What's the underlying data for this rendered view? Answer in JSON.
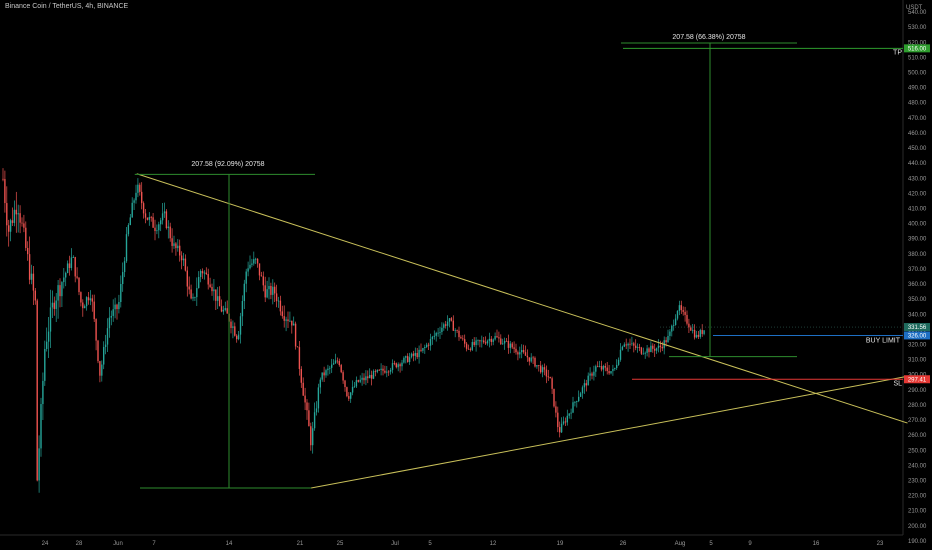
{
  "header": {
    "title": "Binance Coin / TetherUS, 4h, BINANCE"
  },
  "colors": {
    "bull": "#26a69a",
    "bear": "#ef5350",
    "trend": "#c9c05a",
    "measure": "#2e8b2e",
    "buy": "#1e6fc4",
    "tp": "#2e9d2e",
    "sl": "#e53935"
  },
  "chart_data": {
    "type": "candlestick",
    "symbol": "Binance Coin / TetherUS",
    "interval": "4h",
    "exchange": "BINANCE",
    "y_unit": "USDT",
    "ylim": [
      184,
      548
    ],
    "y_ticks": [
      190,
      200,
      210,
      220,
      230,
      240,
      250,
      260,
      270,
      280,
      290,
      300,
      310,
      320,
      330,
      340,
      350,
      360,
      370,
      380,
      390,
      400,
      410,
      420,
      430,
      440,
      450,
      460,
      470,
      480,
      490,
      500,
      510,
      520,
      530,
      540
    ],
    "x_ticks": [
      "24",
      "28",
      "Jun",
      "7",
      "14",
      "21",
      "25",
      "Jul",
      "5",
      "12",
      "19",
      "26",
      "Aug",
      "5",
      "9",
      "16",
      "23"
    ],
    "price_path": [
      [
        "May 19",
        455
      ],
      [
        "May 20",
        395
      ],
      [
        "May 21",
        415
      ],
      [
        "May 22",
        380
      ],
      [
        "May 23",
        345
      ],
      [
        "May 23",
        215
      ],
      [
        "May 24",
        320
      ],
      [
        "May 25",
        350
      ],
      [
        "May 27",
        378
      ],
      [
        "May 28",
        345
      ],
      [
        "May 29",
        355
      ],
      [
        "May 30",
        300
      ],
      [
        "May 31",
        338
      ],
      [
        "Jun 1",
        345
      ],
      [
        "Jun 2",
        395
      ],
      [
        "Jun 3",
        425
      ],
      [
        "Jun 4",
        405
      ],
      [
        "Jun 5",
        398
      ],
      [
        "Jun 6",
        405
      ],
      [
        "Jun 7",
        385
      ],
      [
        "Jun 8",
        378
      ],
      [
        "Jun 9",
        345
      ],
      [
        "Jun 10",
        370
      ],
      [
        "Jun 11",
        362
      ],
      [
        "Jun 12",
        345
      ],
      [
        "Jun 13",
        338
      ],
      [
        "Jun 14",
        325
      ],
      [
        "Jun 15",
        372
      ],
      [
        "Jun 16",
        375
      ],
      [
        "Jun 17",
        355
      ],
      [
        "Jun 18",
        355
      ],
      [
        "Jun 19",
        340
      ],
      [
        "Jun 20",
        335
      ],
      [
        "Jun 21",
        295
      ],
      [
        "Jun 22",
        255
      ],
      [
        "Jun 23",
        298
      ],
      [
        "Jun 25",
        310
      ],
      [
        "Jun 26",
        285
      ],
      [
        "Jun 27",
        295
      ],
      [
        "Jul 1",
        306
      ],
      [
        "Jul 4",
        315
      ],
      [
        "Jul 6",
        330
      ],
      [
        "Jul 7",
        336
      ],
      [
        "Jul 9",
        318
      ],
      [
        "Jul 12",
        325
      ],
      [
        "Jul 14",
        318
      ],
      [
        "Jul 16",
        310
      ],
      [
        "Jul 18",
        298
      ],
      [
        "Jul 19",
        262
      ],
      [
        "Jul 21",
        285
      ],
      [
        "Jul 23",
        305
      ],
      [
        "Jul 25",
        302
      ],
      [
        "Jul 26",
        322
      ],
      [
        "Jul 28",
        316
      ],
      [
        "Jul 30",
        318
      ],
      [
        "Jul 31",
        325
      ],
      [
        "Aug 1",
        345
      ],
      [
        "Aug 2",
        335
      ],
      [
        "Aug 3",
        325
      ],
      [
        "Aug 4",
        331
      ]
    ],
    "trendlines": [
      {
        "from": [
          "Jun 3",
          433
        ],
        "to": [
          "Aug 26",
          268
        ]
      },
      {
        "from": [
          "Jun 22",
          225
        ],
        "to": [
          "Aug 26",
          299
        ]
      }
    ],
    "measurements": [
      {
        "label": "207.58 (92.09%) 20758",
        "base": 225,
        "top": 432.58,
        "anchor_date": "Jun 3",
        "start_date": "Jun 22"
      },
      {
        "label": "207.58 (66.38%) 20758",
        "base": 312,
        "top": 519.58,
        "anchor_date": "Aug 5"
      }
    ],
    "levels": [
      {
        "name": "TP",
        "value": 516,
        "price_tag": "516.00"
      },
      {
        "name": "BUY LIMIT",
        "value": 326,
        "price_tag": "326.00"
      },
      {
        "name": "SL",
        "value": 297,
        "price_tag": "297.41"
      }
    ],
    "current_price": "331.56",
    "current_price_level": 331.56,
    "grid": false
  }
}
